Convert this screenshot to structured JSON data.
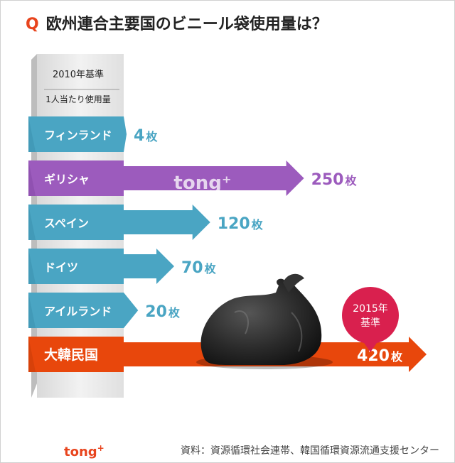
{
  "title": {
    "prefix": "Q",
    "text": "欧州連合主要国のビニール袋使用量は？"
  },
  "header_box": {
    "line1": "2010年基準",
    "line2": "1人当たり使用量"
  },
  "watermark": "tong⁺",
  "badge": {
    "line1": "2015年",
    "line2": "基準"
  },
  "footer": {
    "logo": "tong",
    "logo_plus": "+",
    "source": "資料：資源循環社会連帯、韓国循環資源流通支援センター"
  },
  "colors": {
    "teal": "#4aa5c3",
    "teal_dark": "#3a8fae",
    "purple": "#9c5bbd",
    "purple_dark": "#8447a6",
    "orange": "#e8470c",
    "orange_dark": "#c63c08",
    "badge": "#d9204e"
  },
  "chart_data": {
    "type": "bar",
    "title": "欧州連合主要国のビニール袋使用量は？",
    "unit": "枚",
    "categories": [
      "フィンランド",
      "ギリシャ",
      "スペイン",
      "ドイツ",
      "アイルランド",
      "大韓民国"
    ],
    "values": [
      4,
      250,
      120,
      70,
      20,
      420
    ],
    "value_labels": [
      "4",
      "250",
      "120",
      "70",
      "20",
      "420"
    ],
    "unit_labels": [
      "枚",
      "枚",
      "枚",
      "枚",
      "枚",
      "枚"
    ],
    "highlight": [
      "teal",
      "purple",
      "teal",
      "teal",
      "teal",
      "orange"
    ],
    "xlim": [
      0,
      420
    ]
  }
}
